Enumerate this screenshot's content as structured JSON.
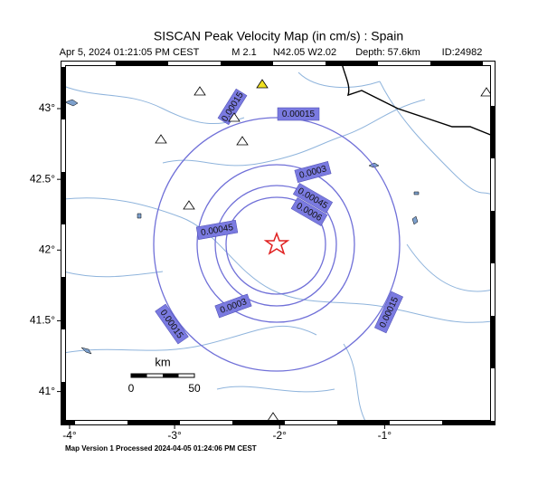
{
  "map": {
    "title": "SISCAN Peak Velocity Map (in cm/s) : Spain",
    "subtitle": {
      "date": "Apr  5, 2024 01:21:05 PM CEST",
      "magnitude": "M 2.1",
      "location": "N42.05 W2.02",
      "depth": "Depth: 57.6km",
      "id": "ID:24982"
    },
    "xlim": [
      -4.06,
      0.03
    ],
    "ylim": [
      40.78,
      43.32
    ],
    "xticks": [
      {
        "value": -4,
        "label": "-4°"
      },
      {
        "value": -3,
        "label": "-3°"
      },
      {
        "value": -2,
        "label": "-2°"
      },
      {
        "value": -1,
        "label": "-1°"
      }
    ],
    "yticks": [
      {
        "value": 43,
        "label": "43°"
      },
      {
        "value": 42.5,
        "label": "42.5°"
      },
      {
        "value": 42,
        "label": "42°"
      },
      {
        "value": 41.5,
        "label": "41.5°"
      },
      {
        "value": 41,
        "label": "41°"
      }
    ],
    "contour_labels": [
      "0.00015",
      "0.00015",
      "0.0003",
      "0.00045",
      "0.0006",
      "0.00045",
      "0.0003",
      "0.00015",
      "0.00015"
    ],
    "scale": {
      "unit": "km",
      "start": "0",
      "end": "50"
    },
    "footer": "Map Version 1 Processed 2024-04-05 01:24:06 PM CEST"
  }
}
